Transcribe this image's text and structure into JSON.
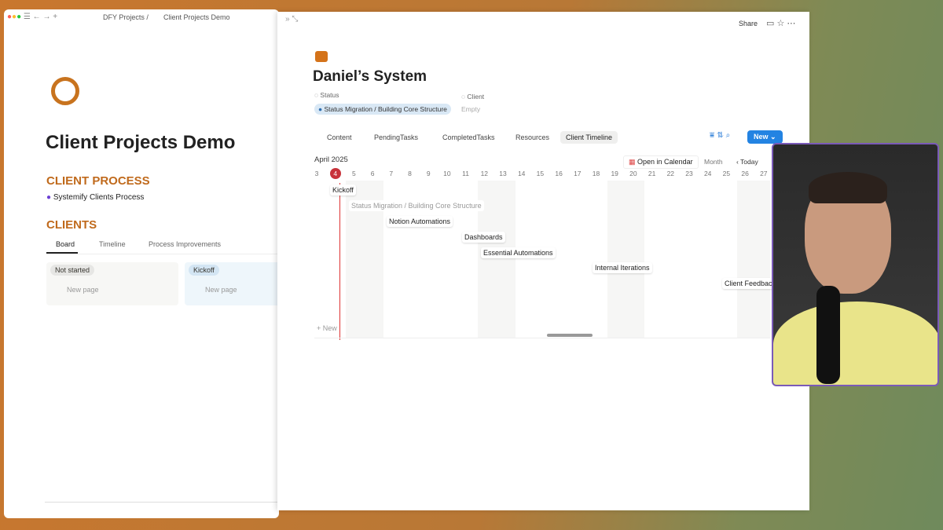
{
  "browser": {
    "breadcrumb_parent": "DFY Projects /",
    "breadcrumb_page": "Client Projects Demo"
  },
  "left_page": {
    "title": "Client Projects Demo",
    "process_heading": "CLIENT PROCESS",
    "process_link": "Systemify Clients Process",
    "clients_heading": "CLIENTS",
    "views": [
      "Board",
      "Timeline",
      "Process Improvements"
    ],
    "columns": [
      {
        "status": "Not started",
        "new": "New page"
      },
      {
        "status": "Kickoff",
        "new": "New page"
      }
    ]
  },
  "peek": {
    "share": "Share",
    "title": "Daniel’s System",
    "properties": [
      {
        "name": "Status",
        "value": "Status Migration / Building Core Structure"
      },
      {
        "name": "Client",
        "value": "Empty"
      }
    ],
    "tabs": [
      "Content",
      "PendingTasks",
      "CompletedTasks",
      "Resources",
      "Client Timeline"
    ],
    "new_button": "New",
    "timeline": {
      "month": "April 2025",
      "open_calendar": "Open in Calendar",
      "scale": "Month",
      "today": "Today",
      "days": [
        "3",
        "4",
        "5",
        "6",
        "7",
        "8",
        "9",
        "10",
        "11",
        "12",
        "13",
        "14",
        "15",
        "16",
        "17",
        "18",
        "19",
        "20",
        "21",
        "22",
        "23",
        "24",
        "25",
        "26",
        "27"
      ],
      "tasks": [
        "Kickoff",
        "Status Migration / Building Core Structure",
        "Notion Automations",
        "Dashboards",
        "Essential Automations",
        "Internal Iterations",
        "Client Feedback"
      ],
      "new": "New"
    }
  }
}
